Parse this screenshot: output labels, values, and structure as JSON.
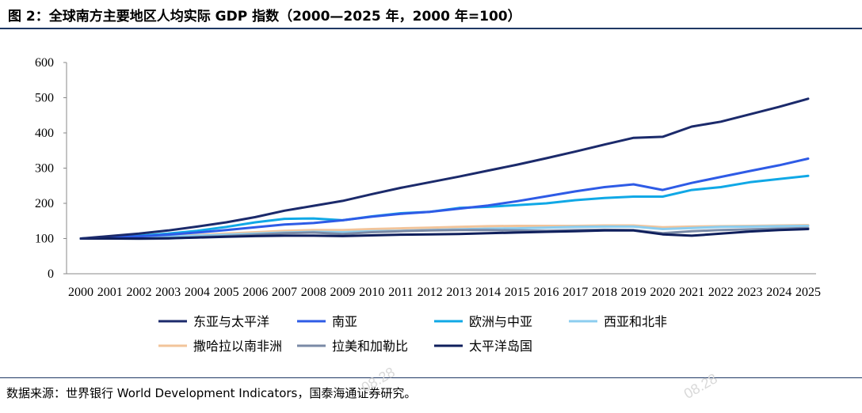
{
  "title": "图 2：全球南方主要地区人均实际 GDP 指数（2000—2025 年，2000 年=100）",
  "source": "数据来源：世界银行 World Development Indicators，国泰海通证券研究。",
  "watermarks": [
    "08.28",
    "08.28"
  ],
  "chart_data": {
    "type": "line",
    "title": "",
    "xlabel": "",
    "ylabel": "",
    "ylim": [
      0,
      600
    ],
    "yticks": [
      0,
      100,
      200,
      300,
      400,
      500,
      600
    ],
    "grid": false,
    "legend_position": "bottom",
    "x": [
      "2000",
      "2001",
      "2002",
      "2003",
      "2004",
      "2005",
      "2006",
      "2007",
      "2008",
      "2009",
      "2010",
      "2011",
      "2012",
      "2013",
      "2014",
      "2015",
      "2016",
      "2017",
      "2018",
      "2019",
      "2020",
      "2021",
      "2022",
      "2023",
      "2024",
      "2025"
    ],
    "series": [
      {
        "name": "东亚与太平洋",
        "color": "#1b2a6b",
        "values": [
          100,
          107,
          114,
          123,
          134,
          146,
          161,
          179,
          193,
          207,
          226,
          244,
          260,
          276,
          293,
          310,
          328,
          347,
          367,
          386,
          389,
          418,
          432,
          453,
          474,
          497
        ]
      },
      {
        "name": "南亚",
        "color": "#2e5be6",
        "values": [
          100,
          103,
          106,
          111,
          117,
          124,
          132,
          140,
          144,
          152,
          162,
          170,
          176,
          185,
          194,
          206,
          220,
          234,
          246,
          254,
          238,
          258,
          275,
          292,
          308,
          327
        ]
      },
      {
        "name": "欧洲与中亚",
        "color": "#10a8e6",
        "values": [
          100,
          104,
          108,
          114,
          122,
          133,
          146,
          156,
          157,
          152,
          163,
          172,
          176,
          187,
          190,
          195,
          200,
          209,
          215,
          219,
          219,
          238,
          246,
          260,
          269,
          278
        ]
      },
      {
        "name": "西亚和北非",
        "color": "#8ccdef",
        "values": [
          100,
          101,
          103,
          105,
          108,
          111,
          114,
          117,
          119,
          118,
          121,
          122,
          124,
          126,
          128,
          129,
          131,
          133,
          134,
          134,
          127,
          130,
          133,
          134,
          135,
          136
        ]
      },
      {
        "name": "撒哈拉以南非洲",
        "color": "#f2c49a",
        "values": [
          100,
          102,
          104,
          106,
          110,
          114,
          118,
          122,
          124,
          124,
          127,
          129,
          131,
          133,
          135,
          136,
          136,
          136,
          137,
          137,
          132,
          134,
          135,
          136,
          137,
          138
        ]
      },
      {
        "name": "拉美和加勒比",
        "color": "#7a8aa6",
        "values": [
          100,
          100,
          99,
          100,
          104,
          107,
          111,
          115,
          117,
          113,
          118,
          121,
          123,
          124,
          124,
          123,
          122,
          124,
          125,
          124,
          115,
          121,
          124,
          126,
          128,
          130
        ]
      },
      {
        "name": "太平洋岛国",
        "color": "#0f1f5c",
        "values": [
          100,
          100,
          100,
          101,
          103,
          105,
          107,
          108,
          108,
          107,
          109,
          111,
          112,
          113,
          115,
          117,
          119,
          121,
          123,
          123,
          112,
          108,
          114,
          120,
          124,
          127
        ]
      }
    ]
  }
}
